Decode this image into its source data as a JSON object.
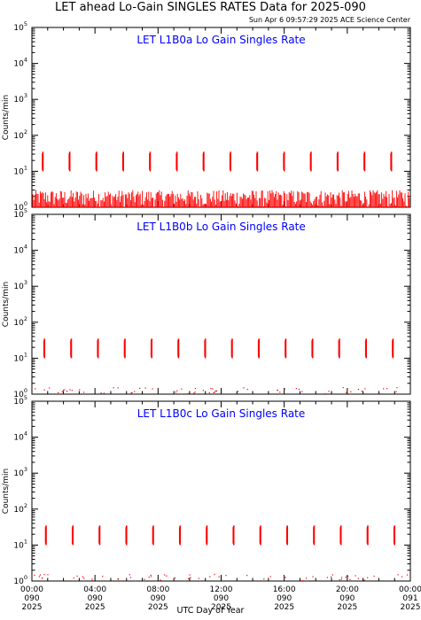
{
  "header": {
    "title": "LET ahead Lo-Gain SINGLES RATES Data for 2025-090",
    "timestamp": "Sun Apr  6 09:57:29 2025 ACE Science Center"
  },
  "x_axis_label": "UTC Day of Year",
  "y_axis_label": "Counts/min",
  "x_ticks": [
    {
      "time": "00:00",
      "doy": "090",
      "year": "2025"
    },
    {
      "time": "04:00",
      "doy": "090",
      "year": "2025"
    },
    {
      "time": "08:00",
      "doy": "090",
      "year": "2025"
    },
    {
      "time": "12:00",
      "doy": "090",
      "year": "2025"
    },
    {
      "time": "16:00",
      "doy": "090",
      "year": "2025"
    },
    {
      "time": "20:00",
      "doy": "090",
      "year": "2025"
    },
    {
      "time": "00:00",
      "doy": "091",
      "year": "2025"
    }
  ],
  "y_ticks": [
    "10",
    "10",
    "10",
    "10",
    "10",
    "10"
  ],
  "y_tick_exponents": [
    "0",
    "1",
    "2",
    "3",
    "4",
    "5"
  ],
  "colors": {
    "series": "#ff0000",
    "panel_title": "#0000ff",
    "axes": "#000000"
  },
  "chart_data": [
    {
      "type": "line",
      "title": "LET L1B0a Lo Gain Singles Rate",
      "xlabel": "UTC Day of Year",
      "ylabel": "Counts/min",
      "xlim_hours": [
        0,
        24
      ],
      "ylim": [
        1,
        100000
      ],
      "yscale": "log",
      "spike_hours": [
        0.7,
        2.4,
        4.1,
        5.8,
        7.5,
        9.2,
        10.9,
        12.6,
        14.3,
        16.0,
        17.7,
        19.4,
        21.1,
        22.8
      ],
      "spike_peak": 35,
      "spike_base": 10,
      "background_level_range": [
        1,
        3
      ]
    },
    {
      "type": "line",
      "title": "LET L1B0b Lo Gain Singles Rate",
      "xlabel": "UTC Day of Year",
      "ylabel": "Counts/min",
      "xlim_hours": [
        0,
        24
      ],
      "ylim": [
        1,
        100000
      ],
      "yscale": "log",
      "spike_hours": [
        0.8,
        2.5,
        4.2,
        5.9,
        7.6,
        9.3,
        11.0,
        12.7,
        14.4,
        16.1,
        17.8,
        19.5,
        21.2,
        22.9
      ],
      "spike_peak": 35,
      "spike_base": 10,
      "background_level_range": [
        1,
        1.5
      ]
    },
    {
      "type": "line",
      "title": "LET L1B0c Lo Gain Singles Rate",
      "xlabel": "UTC Day of Year",
      "ylabel": "Counts/min",
      "xlim_hours": [
        0,
        24
      ],
      "ylim": [
        1,
        100000
      ],
      "yscale": "log",
      "spike_hours": [
        0.9,
        2.6,
        4.3,
        6.0,
        7.7,
        9.4,
        11.1,
        12.8,
        14.5,
        16.2,
        17.9,
        19.6,
        21.3,
        23.0
      ],
      "spike_peak": 35,
      "spike_base": 10,
      "background_level_range": [
        1,
        1.5
      ]
    }
  ]
}
